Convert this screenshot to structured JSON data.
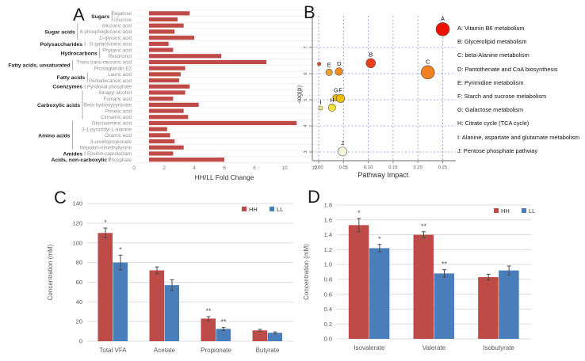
{
  "figure": {
    "panels": {
      "a_label": "A",
      "b_label": "B",
      "c_label": "C",
      "d_label": "D"
    },
    "colors": {
      "hh_red": "#BE4B48",
      "ll_blue": "#4A7EBB",
      "grid_gray": "#DCDCDC",
      "grid_blue": "#8B8BDC",
      "axis_text": "#595959",
      "bar_label_gray": "#8F8F8F"
    }
  },
  "chart_data": [
    {
      "id": "panelA",
      "type": "bar",
      "orientation": "horizontal",
      "xlabel": "HH/LL Fold Change",
      "xlim": [
        0,
        12
      ],
      "xticks": [
        0,
        2,
        4,
        6,
        8,
        10,
        12
      ],
      "bar_baseline": 1,
      "bar_color": "#BE4B48",
      "groups": [
        {
          "label": "Sugars",
          "items": [
            {
              "name": "Tagatose",
              "value": 3.7
            },
            {
              "name": "Glucose",
              "value": 2.9
            }
          ]
        },
        {
          "label": "Sugar acids",
          "items": [
            {
              "name": "Gluconic acid",
              "value": 3.3
            },
            {
              "name": "6-phosphogluconic acid",
              "value": 2.7
            },
            {
              "name": "D-glyceric acid",
              "value": 4.0
            }
          ]
        },
        {
          "label": "Polysaccharides",
          "items": [
            {
              "name": "D-galacturonic acid",
              "value": 2.3
            }
          ]
        },
        {
          "label": "Hydrocarbons",
          "items": [
            {
              "name": "Phytanic acid",
              "value": 2.6
            },
            {
              "name": "Resorcinol",
              "value": 5.8
            }
          ]
        },
        {
          "label": "Fatty acids, unsaturated",
          "items": [
            {
              "name": "Trans,trans-muconic acid",
              "value": 8.8
            },
            {
              "name": "Prostaglandin E2",
              "value": 3.4
            }
          ]
        },
        {
          "label": "Fatty acids",
          "items": [
            {
              "name": "Lauric acid",
              "value": 3.1
            },
            {
              "name": "Pentadecanoic acid",
              "value": 3.0
            }
          ]
        },
        {
          "label": "Coenzymes",
          "items": [
            {
              "name": "Pyridoxal phosphate",
              "value": 3.7
            }
          ]
        },
        {
          "label": "Carboxylic acids",
          "items": [
            {
              "name": "Sinapyl alcohol",
              "value": 3.4
            },
            {
              "name": "Fumaric acid",
              "value": 2.6
            },
            {
              "name": "Beta-hydroxypyruvate",
              "value": 4.3
            },
            {
              "name": "Pimelic acid",
              "value": 3.3
            },
            {
              "name": "Cinnamic acid",
              "value": 3.6
            }
          ]
        },
        {
          "label": "Amino acids",
          "items": [
            {
              "name": "Glucosaminic acid",
              "value": 10.8
            },
            {
              "name": "3-1-pyrazolyl-L-alanine",
              "value": 2.2
            },
            {
              "name": "Oxamic acid",
              "value": 2.4
            },
            {
              "name": "3-ureidopropionate",
              "value": 2.7
            },
            {
              "name": "Nepsilon-trimethyllysine",
              "value": 3.3
            }
          ]
        },
        {
          "label": "Amides",
          "items": [
            {
              "name": "Epsilon-caprolactam",
              "value": 2.6
            }
          ]
        },
        {
          "label": "Acids, non-carboxylic",
          "items": [
            {
              "name": "Phosphate",
              "value": 6.0
            }
          ]
        }
      ]
    },
    {
      "id": "panelB",
      "type": "scatter",
      "xlabel": "Pathway Impact",
      "ylabel": "-log(p)",
      "xlim": [
        -0.01,
        0.27
      ],
      "ylim": [
        2.7,
        8.2
      ],
      "xticks": [
        0.0,
        0.05,
        0.1,
        0.15,
        0.2,
        0.25
      ],
      "yticks": [
        3,
        4,
        5,
        6,
        7
      ],
      "points": [
        {
          "label": "",
          "x": 0.001,
          "y": 6.37,
          "r": 2.2,
          "color": "#E84818"
        },
        {
          "label": "E",
          "x": 0.021,
          "y": 6.05,
          "r": 4.2,
          "color": "#F0A030"
        },
        {
          "label": "D",
          "x": 0.041,
          "y": 6.08,
          "r": 4.8,
          "color": "#F08C20"
        },
        {
          "label": "B",
          "x": 0.105,
          "y": 6.4,
          "r": 6.0,
          "color": "#E8401A"
        },
        {
          "label": "C",
          "x": 0.22,
          "y": 6.05,
          "r": 8.5,
          "color": "#F08020"
        },
        {
          "label": "A",
          "x": 0.25,
          "y": 7.7,
          "r": 8.5,
          "color": "#EE1100"
        },
        {
          "label": "G",
          "x": 0.035,
          "y": 5.08,
          "r": 4.2,
          "color": "#E6B400"
        },
        {
          "label": "F",
          "x": 0.044,
          "y": 5.05,
          "r": 5.2,
          "color": "#EDC100"
        },
        {
          "label": "H",
          "x": 0.027,
          "y": 4.7,
          "r": 4.6,
          "color": "#F2E23B"
        },
        {
          "label": "I",
          "x": 0.004,
          "y": 4.68,
          "r": 2.6,
          "color": "#F5EE8A"
        },
        {
          "label": "J",
          "x": 0.048,
          "y": 3.02,
          "r": 5.6,
          "color": "#FAF6DC"
        }
      ],
      "legend": [
        "A: Vitamin B6 metabolism",
        "B: Glycerolipid metabolism",
        "C: beta-Alanine metabolism",
        "D: Pantothenate and CoA biosynthesis",
        "E: Pyrimidine metabolism",
        "F: Starch and sucrose metabolism",
        "G: Galactose metabolism",
        "H: Citrate cycle (TCA cycle)",
        "I: Alanine, aspartate and glutamate metabolism",
        "J: Pentose phosphate pathway"
      ]
    },
    {
      "id": "panelC",
      "type": "bar",
      "ylabel": "Concentration (mM)",
      "ylim": [
        0,
        140
      ],
      "yticks": [
        0,
        20,
        40,
        60,
        80,
        100,
        120,
        140
      ],
      "ytick_decimals": 0,
      "categories": [
        "Total VFA",
        "Acetate",
        "Propionate",
        "Butyrate"
      ],
      "series": [
        {
          "name": "HH",
          "color": "#BE4B48",
          "values": [
            110,
            72,
            23,
            11
          ],
          "errors": [
            5,
            3.5,
            2,
            1
          ],
          "sig": [
            "*",
            "",
            "**",
            ""
          ]
        },
        {
          "name": "LL",
          "color": "#4A7EBB",
          "values": [
            80,
            57,
            12.5,
            8.5
          ],
          "errors": [
            7.5,
            5.5,
            1.5,
            1
          ],
          "sig": [
            "*",
            "",
            "**",
            ""
          ]
        }
      ]
    },
    {
      "id": "panelD",
      "type": "bar",
      "ylabel": "Concentration (mM)",
      "ylim": [
        0,
        1.8
      ],
      "yticks": [
        0.0,
        0.2,
        0.4,
        0.6,
        0.8,
        1.0,
        1.2,
        1.4,
        1.6,
        1.8
      ],
      "ytick_decimals": 1,
      "categories": [
        "Isovalerate",
        "Valerate",
        "Isobutyrate"
      ],
      "series": [
        {
          "name": "HH",
          "color": "#BE4B48",
          "values": [
            1.53,
            1.4,
            0.83
          ],
          "errors": [
            0.09,
            0.04,
            0.04
          ],
          "sig": [
            "*",
            "**",
            ""
          ]
        },
        {
          "name": "LL",
          "color": "#4A7EBB",
          "values": [
            1.22,
            0.88,
            0.92
          ],
          "errors": [
            0.05,
            0.05,
            0.06
          ],
          "sig": [
            "*",
            "**",
            ""
          ]
        }
      ]
    }
  ]
}
